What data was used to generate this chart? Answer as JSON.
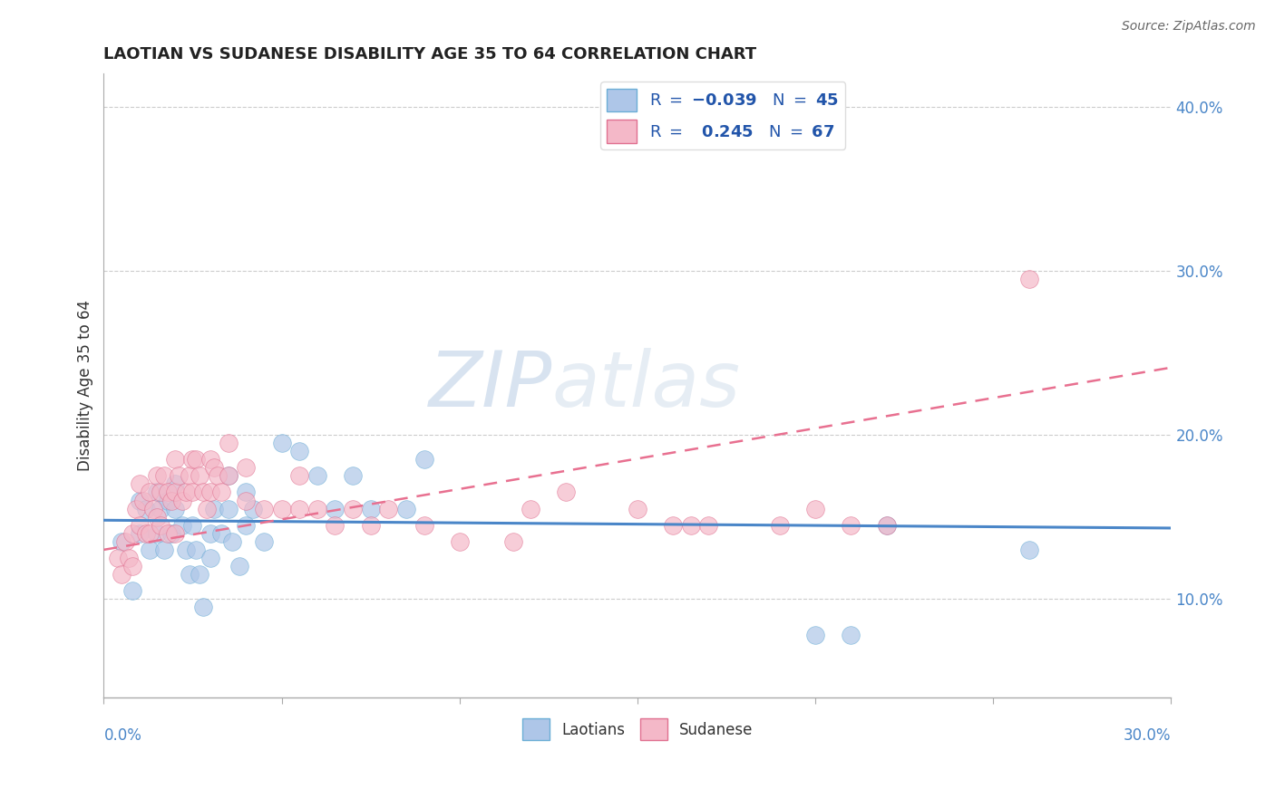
{
  "title": "LAOTIAN VS SUDANESE DISABILITY AGE 35 TO 64 CORRELATION CHART",
  "source": "Source: ZipAtlas.com",
  "ylabel": "Disability Age 35 to 64",
  "ylabel_right_ticks": [
    "10.0%",
    "20.0%",
    "30.0%",
    "40.0%"
  ],
  "ylabel_right_vals": [
    0.1,
    0.2,
    0.3,
    0.4
  ],
  "xmin": 0.0,
  "xmax": 0.3,
  "ymin": 0.04,
  "ymax": 0.42,
  "laotian_color": "#aec6e8",
  "sudanese_color": "#f4b8c8",
  "laotian_edge_color": "#6baed6",
  "sudanese_edge_color": "#e07090",
  "laotian_line_color": "#4a86c8",
  "sudanese_line_color": "#e87090",
  "legend_N_laotian": "45",
  "legend_R_sudanese": "0.245",
  "legend_N_sudanese": "67",
  "laotian_x": [
    0.005,
    0.008,
    0.01,
    0.01,
    0.012,
    0.013,
    0.015,
    0.015,
    0.016,
    0.017,
    0.018,
    0.019,
    0.02,
    0.02,
    0.022,
    0.023,
    0.024,
    0.025,
    0.026,
    0.027,
    0.028,
    0.03,
    0.03,
    0.031,
    0.033,
    0.035,
    0.035,
    0.036,
    0.038,
    0.04,
    0.04,
    0.042,
    0.045,
    0.05,
    0.055,
    0.06,
    0.065,
    0.07,
    0.075,
    0.085,
    0.09,
    0.2,
    0.21,
    0.22,
    0.26
  ],
  "laotian_y": [
    0.135,
    0.105,
    0.16,
    0.14,
    0.155,
    0.13,
    0.165,
    0.14,
    0.155,
    0.13,
    0.16,
    0.14,
    0.17,
    0.155,
    0.145,
    0.13,
    0.115,
    0.145,
    0.13,
    0.115,
    0.095,
    0.14,
    0.125,
    0.155,
    0.14,
    0.175,
    0.155,
    0.135,
    0.12,
    0.165,
    0.145,
    0.155,
    0.135,
    0.195,
    0.19,
    0.175,
    0.155,
    0.175,
    0.155,
    0.155,
    0.185,
    0.078,
    0.078,
    0.145,
    0.13
  ],
  "sudanese_x": [
    0.004,
    0.005,
    0.006,
    0.007,
    0.008,
    0.008,
    0.009,
    0.01,
    0.01,
    0.011,
    0.012,
    0.013,
    0.013,
    0.014,
    0.015,
    0.015,
    0.016,
    0.016,
    0.017,
    0.018,
    0.018,
    0.019,
    0.02,
    0.02,
    0.02,
    0.021,
    0.022,
    0.023,
    0.024,
    0.025,
    0.025,
    0.026,
    0.027,
    0.028,
    0.029,
    0.03,
    0.03,
    0.031,
    0.032,
    0.033,
    0.035,
    0.035,
    0.04,
    0.04,
    0.045,
    0.05,
    0.055,
    0.055,
    0.06,
    0.065,
    0.07,
    0.075,
    0.08,
    0.09,
    0.1,
    0.115,
    0.12,
    0.13,
    0.15,
    0.16,
    0.165,
    0.17,
    0.19,
    0.2,
    0.21,
    0.22,
    0.26
  ],
  "sudanese_y": [
    0.125,
    0.115,
    0.135,
    0.125,
    0.14,
    0.12,
    0.155,
    0.17,
    0.145,
    0.16,
    0.14,
    0.165,
    0.14,
    0.155,
    0.175,
    0.15,
    0.165,
    0.145,
    0.175,
    0.165,
    0.14,
    0.16,
    0.185,
    0.165,
    0.14,
    0.175,
    0.16,
    0.165,
    0.175,
    0.185,
    0.165,
    0.185,
    0.175,
    0.165,
    0.155,
    0.185,
    0.165,
    0.18,
    0.175,
    0.165,
    0.195,
    0.175,
    0.18,
    0.16,
    0.155,
    0.155,
    0.175,
    0.155,
    0.155,
    0.145,
    0.155,
    0.145,
    0.155,
    0.145,
    0.135,
    0.135,
    0.155,
    0.165,
    0.155,
    0.145,
    0.145,
    0.145,
    0.145,
    0.155,
    0.145,
    0.145,
    0.295
  ]
}
